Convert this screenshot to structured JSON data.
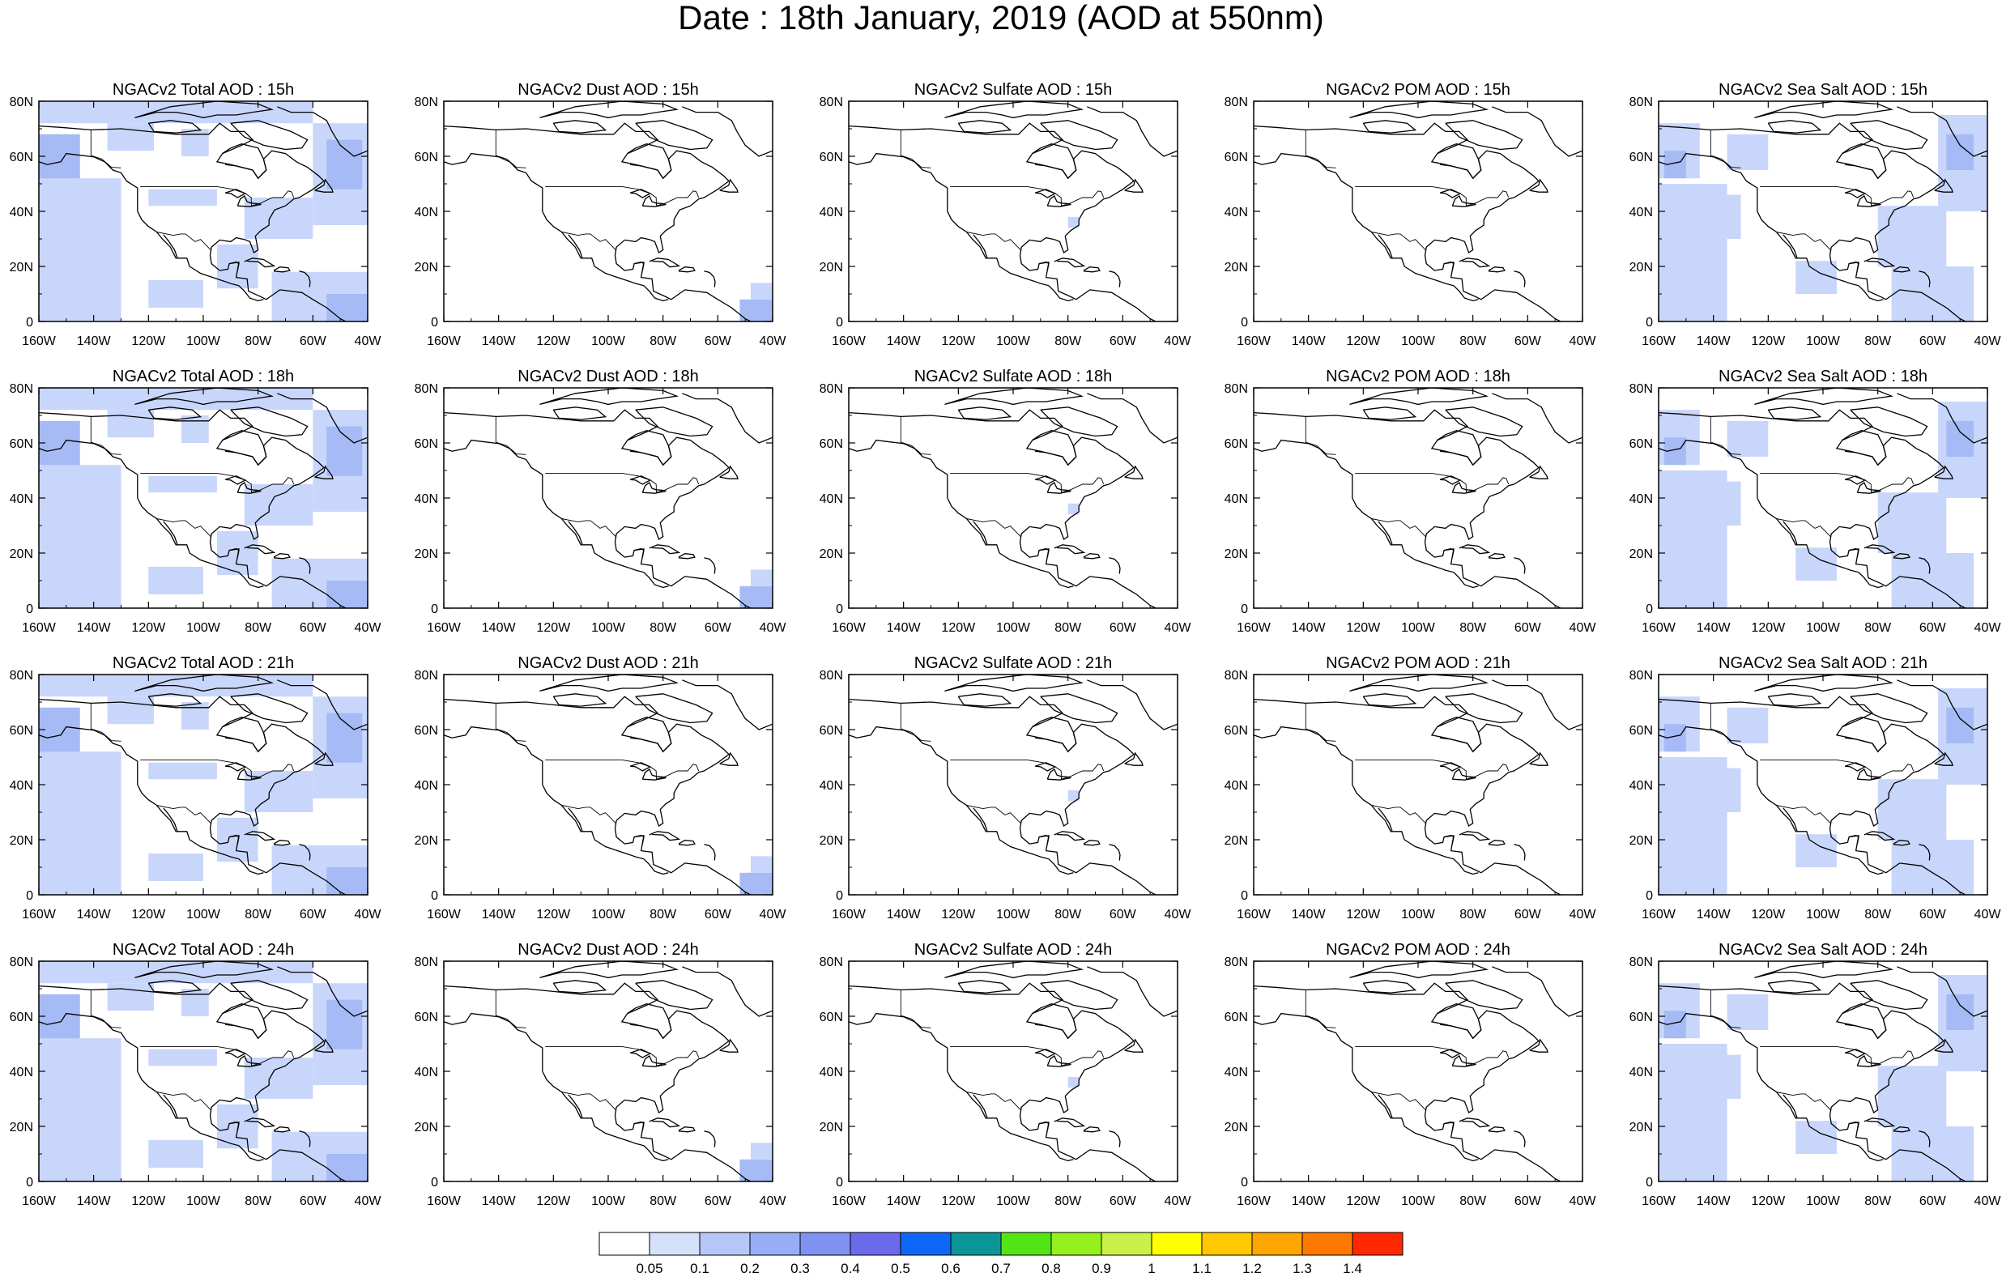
{
  "title": "Date : 18th January, 2019 (AOD at 550nm)",
  "map_extent": {
    "lon_min": -160,
    "lon_max": -40,
    "lat_min": 0,
    "lat_max": 80
  },
  "lon_ticks": [
    {
      "value": -160,
      "label": "160W"
    },
    {
      "value": -140,
      "label": "140W"
    },
    {
      "value": -120,
      "label": "120W"
    },
    {
      "value": -100,
      "label": "100W"
    },
    {
      "value": -80,
      "label": "80W"
    },
    {
      "value": -60,
      "label": "60W"
    },
    {
      "value": -40,
      "label": "40W"
    }
  ],
  "lat_ticks": [
    {
      "value": 0,
      "label": "0"
    },
    {
      "value": 20,
      "label": "20N"
    },
    {
      "value": 40,
      "label": "40N"
    },
    {
      "value": 60,
      "label": "60N"
    },
    {
      "value": 80,
      "label": "80N"
    }
  ],
  "panel_titles": [
    [
      "NGACv2 Total AOD : 15h",
      "NGACv2 Dust AOD : 15h",
      "NGACv2 Sulfate AOD : 15h",
      "NGACv2 POM AOD : 15h",
      "NGACv2 Sea Salt AOD : 15h"
    ],
    [
      "NGACv2 Total AOD : 18h",
      "NGACv2 Dust AOD : 18h",
      "NGACv2 Sulfate AOD : 18h",
      "NGACv2 POM AOD : 18h",
      "NGACv2 Sea Salt AOD : 18h"
    ],
    [
      "NGACv2 Total AOD : 21h",
      "NGACv2 Dust AOD : 21h",
      "NGACv2 Sulfate AOD : 21h",
      "NGACv2 POM AOD : 21h",
      "NGACv2 Sea Salt AOD : 21h"
    ],
    [
      "NGACv2 Total AOD : 24h",
      "NGACv2 Dust AOD : 24h",
      "NGACv2 Sulfate AOD : 24h",
      "NGACv2 POM AOD : 24h",
      "NGACv2 Sea Salt  AOD : 24h"
    ]
  ],
  "colorbar": {
    "colors": [
      "#ffffff",
      "#d5e0fb",
      "#b6c7f7",
      "#97adf5",
      "#7f92f2",
      "#6a6aeb",
      "#0f68f5",
      "#0a9696",
      "#52e414",
      "#96f01e",
      "#c8f048",
      "#ffff00",
      "#ffc800",
      "#ffa500",
      "#ff7800",
      "#ff2800"
    ],
    "labels": [
      "0.05",
      "0.1",
      "0.2",
      "0.3",
      "0.4",
      "0.5",
      "0.6",
      "0.7",
      "0.8",
      "0.9",
      "1",
      "1.1",
      "1.2",
      "1.3",
      "1.4"
    ]
  },
  "colors": {
    "aod_blob": "#c9d6fb",
    "aod_blob_strong": "#a6baf6",
    "coastline": "#000000"
  }
}
